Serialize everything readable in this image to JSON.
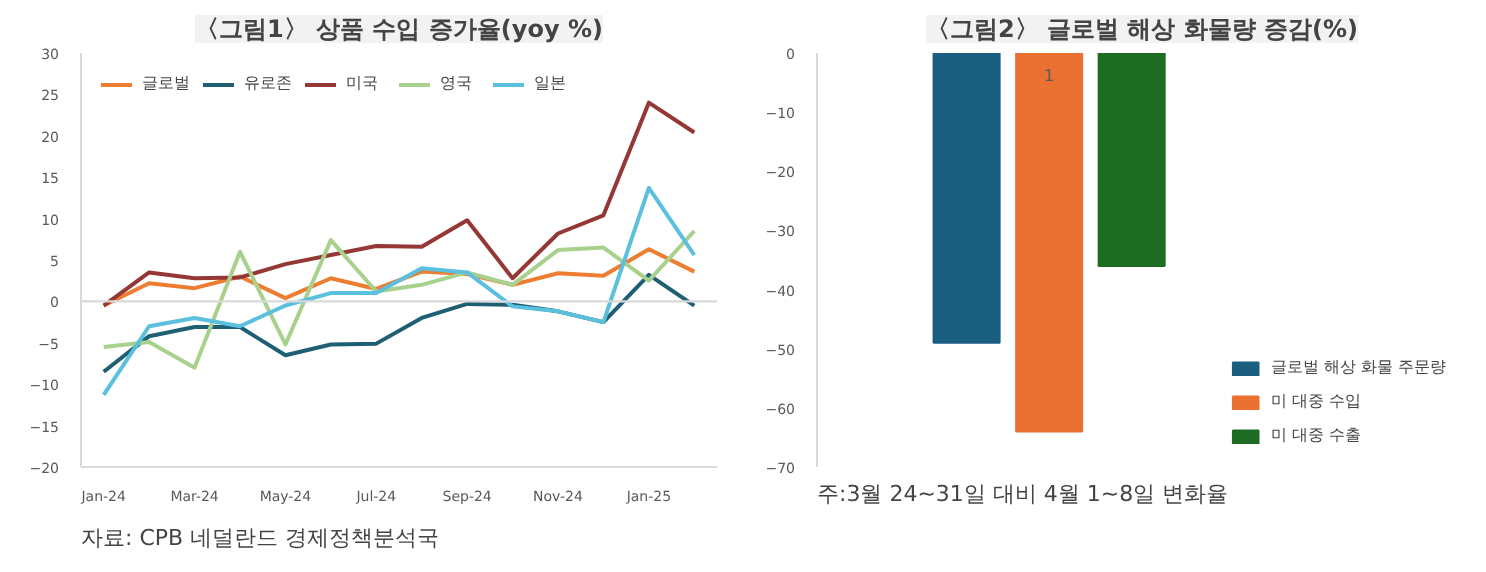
{
  "chart_data": [
    {
      "type": "line",
      "title": "〈그림1〉 상품 수입 증가율(yoy %)",
      "categories": [
        "Jan-24",
        null,
        "Mar-24",
        null,
        "May-24",
        null,
        "Jul-24",
        null,
        "Sep-24",
        null,
        "Nov-24",
        null,
        "Jan-25",
        null
      ],
      "series": [
        {
          "name": "글로벌",
          "color": "#ed7d31",
          "values": [
            -0.5,
            2.2,
            1.6,
            3.0,
            0.4,
            2.8,
            1.5,
            3.6,
            3.3,
            2.0,
            3.4,
            3.1,
            6.3,
            3.6
          ]
        },
        {
          "name": "유로존",
          "color": "#1f5f73",
          "values": [
            -8.5,
            -4.2,
            -3.1,
            -3.1,
            -6.5,
            -5.2,
            -5.1,
            -2.0,
            -0.3,
            -0.4,
            -1.2,
            -2.5,
            3.2,
            -0.5
          ]
        },
        {
          "name": "미국",
          "color": "#953735",
          "values": [
            -0.5,
            3.5,
            2.8,
            2.9,
            4.5,
            5.6,
            6.7,
            6.6,
            9.8,
            2.8,
            8.2,
            10.4,
            24.0,
            20.4
          ]
        },
        {
          "name": "영국",
          "color": "#a9d18e",
          "values": [
            -5.5,
            -4.9,
            -8.0,
            6.0,
            -5.2,
            7.4,
            1.2,
            2.0,
            3.5,
            2.0,
            6.2,
            6.5,
            2.5,
            8.5
          ]
        },
        {
          "name": "일본",
          "color": "#5bc0de",
          "values": [
            -11.3,
            -3.0,
            -2.0,
            -3.0,
            -0.5,
            1.0,
            1.0,
            4.0,
            3.5,
            -0.6,
            -1.2,
            -2.5,
            13.7,
            5.6
          ]
        }
      ],
      "ylim": [
        -20,
        30
      ],
      "yticks": [
        -20,
        -15,
        -10,
        -5,
        0,
        5,
        10,
        15,
        20,
        25,
        30
      ],
      "ref_lines": [
        {
          "axis": "y",
          "value": 0,
          "color": "#d9d9d9"
        }
      ],
      "grid": false,
      "legend": "top left",
      "marker": "none",
      "line_style": "solid",
      "annotations": [
        "자료: CPB 네덜란드 경제정책분석국"
      ]
    },
    {
      "type": "bar",
      "title": "〈그림2〉 글로벌 해상 화물량 증감(%)",
      "categories": [
        null
      ],
      "series": [
        {
          "name": "글로벌 해상 화물 주문량",
          "color": "#1a5e80",
          "values": [
            -49
          ]
        },
        {
          "name": "미 대중 수입",
          "color": "#eb7132",
          "values": [
            -64
          ]
        },
        {
          "name": "미 대중 수출",
          "color": "#1e6b24",
          "values": [
            -36
          ]
        }
      ],
      "ylim": [
        -70,
        0
      ],
      "yticks": [
        -70,
        -60,
        -50,
        -40,
        -30,
        -20,
        -10,
        0
      ],
      "grid": false,
      "legend": "bottom right",
      "annotations": [
        "1",
        "주:3월 24~31일 대비 4월 1~8일 변화율"
      ]
    }
  ]
}
